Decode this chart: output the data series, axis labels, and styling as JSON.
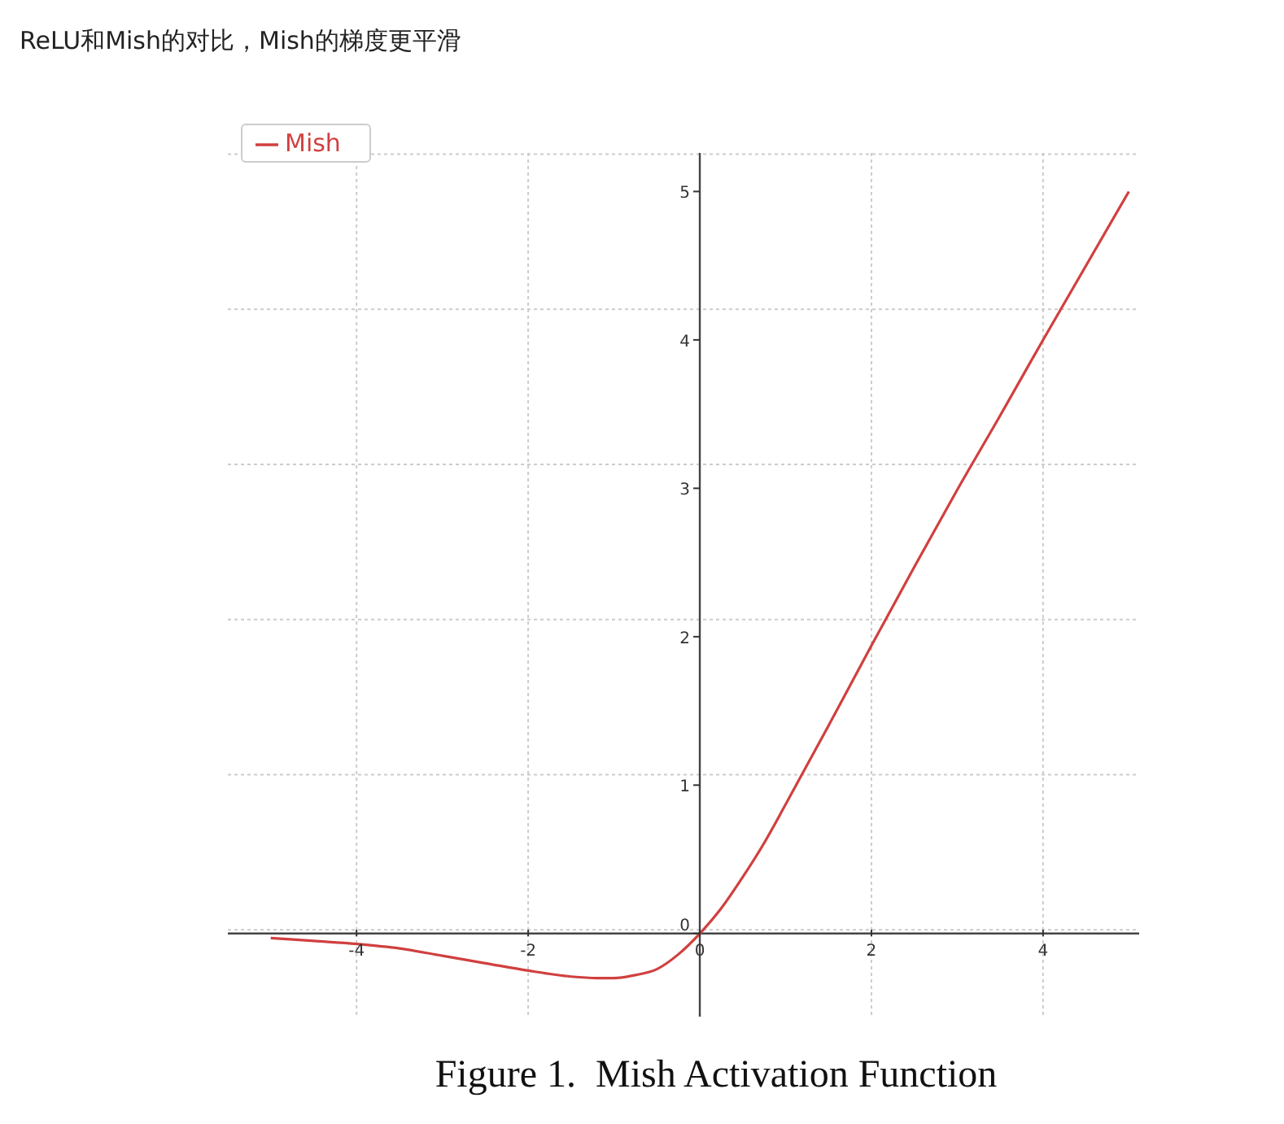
{
  "chart_data": {
    "type": "line",
    "title": "ReLU和Mish的对比，Mish的梯度更平滑",
    "annotations": [
      "Figure 1.  Mish Activation Function"
    ],
    "series": [
      {
        "name": "Mish",
        "color": "#d0403f",
        "x": [
          -5,
          -4.5,
          -4,
          -3.5,
          -3,
          -2.5,
          -2,
          -1.5,
          -1.2,
          -1,
          -0.75,
          -0.5,
          -0.25,
          0,
          0.25,
          0.5,
          0.75,
          1,
          1.5,
          2,
          2.5,
          3,
          3.5,
          4,
          5
        ],
        "values": [
          -0.03,
          -0.05,
          -0.07,
          -0.1,
          -0.15,
          -0.2,
          -0.25,
          -0.29,
          -0.3,
          -0.3,
          -0.28,
          -0.24,
          -0.14,
          0,
          0.17,
          0.38,
          0.61,
          0.87,
          1.4,
          1.94,
          2.47,
          2.99,
          3.49,
          4,
          5
        ]
      }
    ],
    "xlim": [
      -5.5,
      5.12
    ],
    "ylim": [
      -0.56,
      5.26
    ],
    "xticks": [
      -4,
      -2,
      0,
      2,
      4
    ],
    "yticks": [
      0,
      1,
      2,
      3,
      4,
      5
    ],
    "grid": true,
    "legend": "top left",
    "marker": "none",
    "line_style": "solid"
  }
}
